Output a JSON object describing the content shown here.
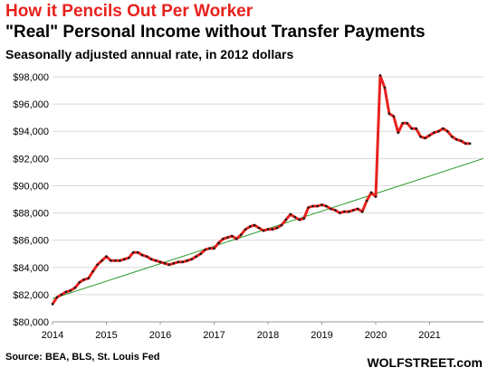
{
  "chart_data": {
    "type": "line",
    "title": "How it Pencils Out Per Worker",
    "subtitle": "\"Real\" Personal Income without Transfer Payments",
    "subtitle2": "Seasonally adjusted annual rate, in 2012 dollars",
    "xlabel": "",
    "ylabel": "",
    "xlim": [
      2014,
      2022
    ],
    "ylim": [
      80000,
      98000
    ],
    "x_ticks": [
      "2014",
      "2015",
      "2016",
      "2017",
      "2018",
      "2019",
      "2020",
      "2021"
    ],
    "y_ticks": [
      "$80,000",
      "$82,000",
      "$84,000",
      "$86,000",
      "$88,000",
      "$90,000",
      "$92,000",
      "$94,000",
      "$96,000",
      "$98,000"
    ],
    "grid": true,
    "legend": "none",
    "series": [
      {
        "color": "#e8211d",
        "x": [
          2014.0,
          2014.083,
          2014.167,
          2014.25,
          2014.333,
          2014.417,
          2014.5,
          2014.583,
          2014.667,
          2014.75,
          2014.833,
          2014.917,
          2015.0,
          2015.083,
          2015.167,
          2015.25,
          2015.333,
          2015.417,
          2015.5,
          2015.583,
          2015.667,
          2015.75,
          2015.833,
          2015.917,
          2016.0,
          2016.083,
          2016.167,
          2016.25,
          2016.333,
          2016.417,
          2016.5,
          2016.583,
          2016.667,
          2016.75,
          2016.833,
          2016.917,
          2017.0,
          2017.083,
          2017.167,
          2017.25,
          2017.333,
          2017.417,
          2017.5,
          2017.583,
          2017.667,
          2017.75,
          2017.833,
          2017.917,
          2018.0,
          2018.083,
          2018.167,
          2018.25,
          2018.333,
          2018.417,
          2018.5,
          2018.583,
          2018.667,
          2018.75,
          2018.833,
          2018.917,
          2019.0,
          2019.083,
          2019.167,
          2019.25,
          2019.333,
          2019.417,
          2019.5,
          2019.583,
          2019.667,
          2019.75,
          2019.833,
          2019.917,
          2020.0,
          2020.083,
          2020.167,
          2020.25,
          2020.333,
          2020.417,
          2020.5,
          2020.583,
          2020.667,
          2020.75,
          2020.833,
          2020.917,
          2021.0,
          2021.083,
          2021.167,
          2021.25,
          2021.333,
          2021.417,
          2021.5,
          2021.583,
          2021.667,
          2021.75
        ],
        "values": [
          81300,
          81800,
          82000,
          82200,
          82300,
          82500,
          82900,
          83100,
          83200,
          83700,
          84200,
          84500,
          84800,
          84500,
          84500,
          84500,
          84600,
          84700,
          85100,
          85100,
          84900,
          84800,
          84600,
          84500,
          84400,
          84300,
          84200,
          84300,
          84400,
          84400,
          84500,
          84600,
          84800,
          85000,
          85300,
          85400,
          85400,
          85800,
          86100,
          86200,
          86300,
          86100,
          86400,
          86800,
          87000,
          87100,
          86900,
          86700,
          86800,
          86800,
          86900,
          87100,
          87500,
          87900,
          87700,
          87500,
          87600,
          88400,
          88500,
          88500,
          88600,
          88500,
          88300,
          88200,
          88000,
          88100,
          88100,
          88200,
          88300,
          88100,
          88900,
          89500,
          89200,
          98100,
          97200,
          95300,
          95100,
          93900,
          94600,
          94600,
          94200,
          94200,
          93600,
          93500,
          93700,
          93900,
          94000,
          94200,
          94000,
          93600,
          93400,
          93300,
          93100,
          93100
        ]
      },
      {
        "color": "#2a9a2a",
        "x": [
          2014.0,
          2022.0
        ],
        "values": [
          81700,
          92000
        ]
      }
    ]
  },
  "footer": {
    "source": "Source: BEA, BLS, St. Louis Fed",
    "brand": "WOLFSTREET.com"
  }
}
